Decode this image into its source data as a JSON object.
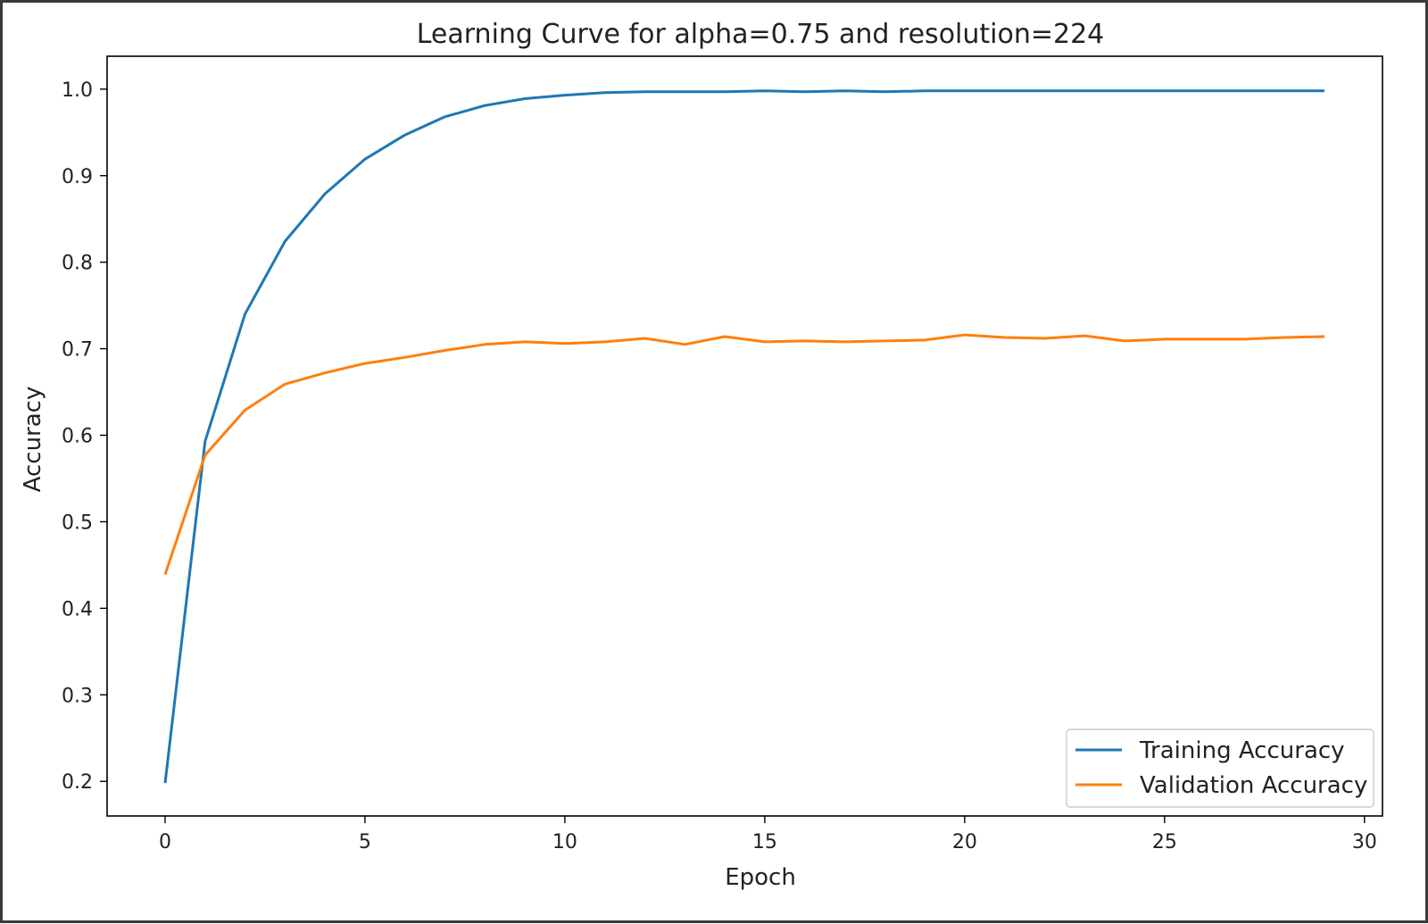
{
  "chart_data": {
    "type": "line",
    "title": "Learning Curve for alpha=0.75 and resolution=224",
    "xlabel": "Epoch",
    "ylabel": "Accuracy",
    "xlim": [
      -1.45,
      30.45
    ],
    "ylim": [
      0.16,
      1.038
    ],
    "xticks": [
      0,
      5,
      10,
      15,
      20,
      25,
      30
    ],
    "yticks": [
      0.2,
      0.3,
      0.4,
      0.5,
      0.6,
      0.7,
      0.8,
      0.9,
      1.0
    ],
    "xtick_labels": [
      "0",
      "5",
      "10",
      "15",
      "20",
      "25",
      "30"
    ],
    "ytick_labels": [
      "0.2",
      "0.3",
      "0.4",
      "0.5",
      "0.6",
      "0.7",
      "0.8",
      "0.9",
      "1.0"
    ],
    "grid": false,
    "legend_position": "bottom-right",
    "x": [
      0,
      1,
      2,
      3,
      4,
      5,
      6,
      7,
      8,
      9,
      10,
      11,
      12,
      13,
      14,
      15,
      16,
      17,
      18,
      19,
      20,
      21,
      22,
      23,
      24,
      25,
      26,
      27,
      28,
      29
    ],
    "series": [
      {
        "name": "Training Accuracy",
        "color": "#1f77b4",
        "values": [
          0.198,
          0.593,
          0.74,
          0.824,
          0.879,
          0.919,
          0.947,
          0.968,
          0.981,
          0.989,
          0.993,
          0.996,
          0.997,
          0.997,
          0.997,
          0.998,
          0.997,
          0.998,
          0.997,
          0.998,
          0.998,
          0.998,
          0.998,
          0.998,
          0.998,
          0.998,
          0.998,
          0.998,
          0.998,
          0.998
        ]
      },
      {
        "name": "Validation Accuracy",
        "color": "#ff7f0e",
        "values": [
          0.439,
          0.577,
          0.629,
          0.659,
          0.672,
          0.683,
          0.69,
          0.698,
          0.705,
          0.708,
          0.706,
          0.708,
          0.712,
          0.705,
          0.714,
          0.708,
          0.709,
          0.708,
          0.709,
          0.71,
          0.716,
          0.713,
          0.712,
          0.715,
          0.709,
          0.711,
          0.711,
          0.711,
          0.713,
          0.714
        ]
      }
    ]
  }
}
